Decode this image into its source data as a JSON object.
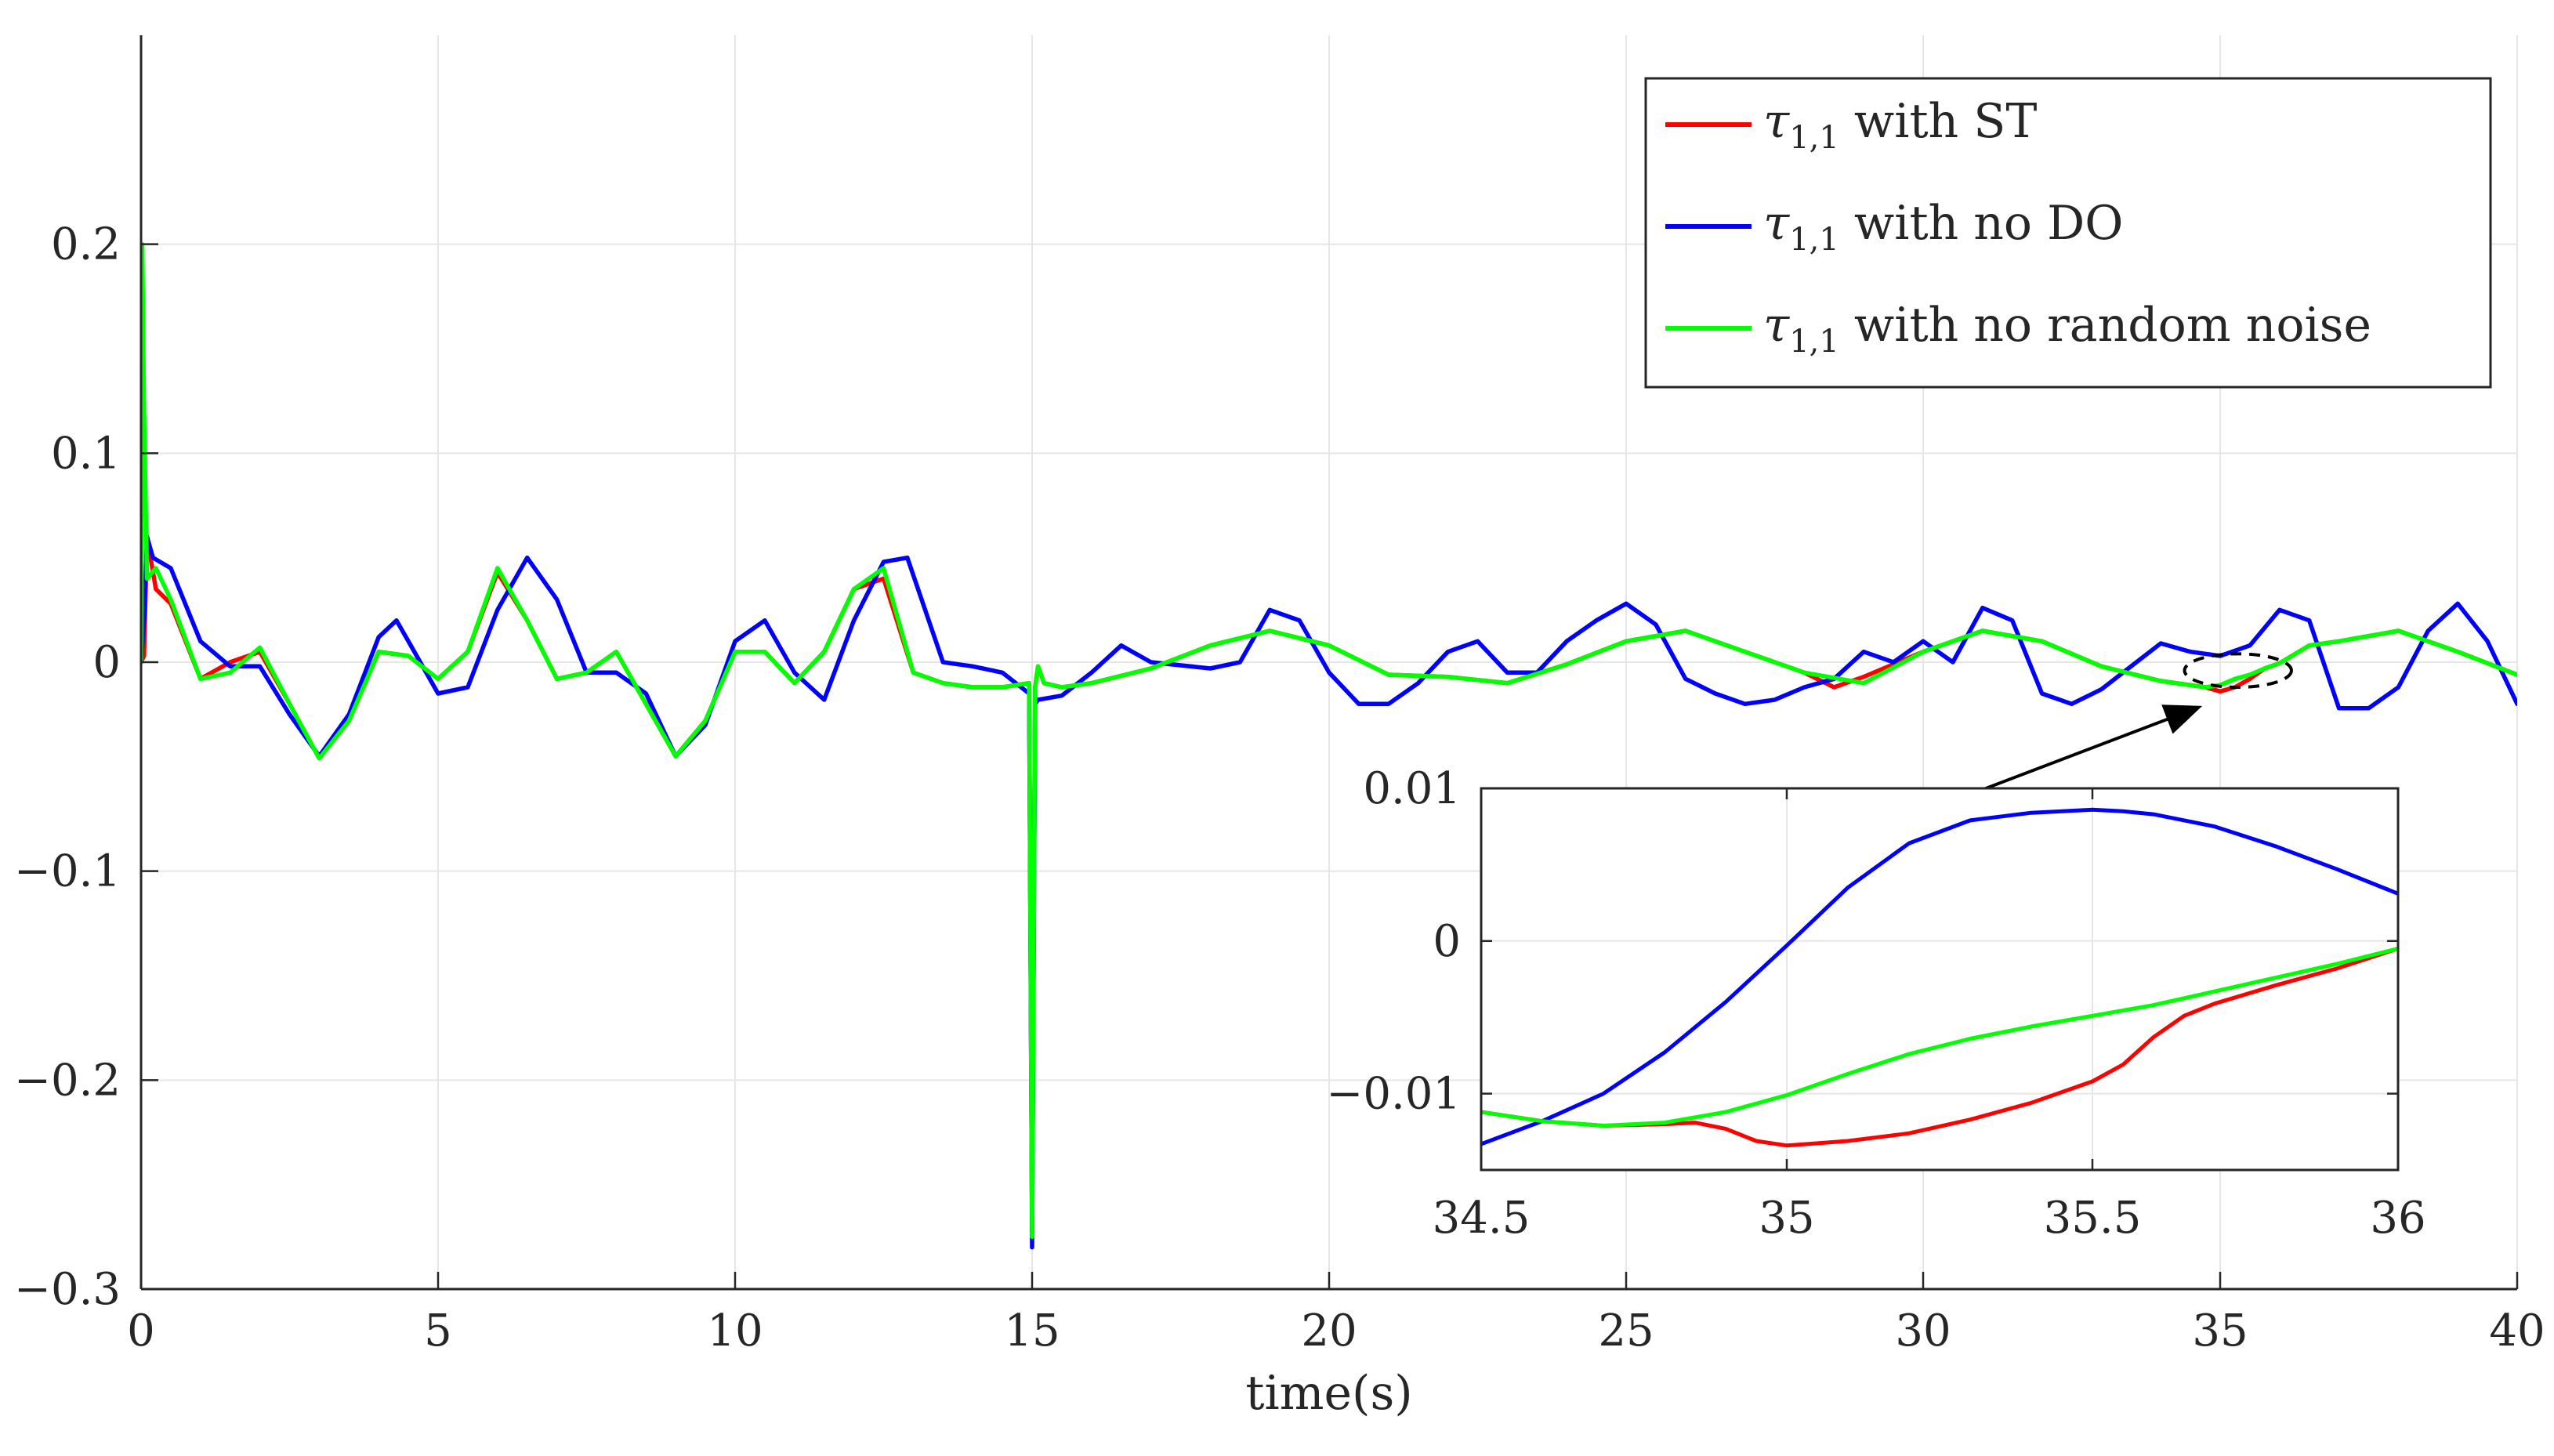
{
  "chart_data": [
    {
      "type": "line",
      "xlabel": "time(s)",
      "ylabel": "",
      "xlim": [
        0,
        40
      ],
      "ylim": [
        -0.3,
        0.3
      ],
      "xticks": [
        0,
        5,
        10,
        15,
        20,
        25,
        30,
        35,
        40
      ],
      "xtick_labels": [
        "0",
        "5",
        "10",
        "15",
        "20",
        "25",
        "30",
        "35",
        "40"
      ],
      "yticks": [
        -0.3,
        -0.2,
        -0.1,
        0,
        0.1,
        0.2
      ],
      "ytick_labels": [
        "−0.3",
        "−0.2",
        "−0.1",
        "0",
        "0.1",
        "0.2"
      ],
      "grid": true,
      "legend_position": "top-right",
      "legend": [
        {
          "symbol": "τ",
          "subscript": "1,1",
          "text": " with ST"
        },
        {
          "symbol": "τ",
          "subscript": "1,1",
          "text": " with no DO"
        },
        {
          "symbol": "τ",
          "subscript": "1,1",
          "text": " with no random noise"
        }
      ],
      "series": [
        {
          "color": "#ff0000",
          "x": [
            0,
            0.05,
            0.1,
            0.25,
            0.5,
            1,
            1.5,
            2,
            2.5,
            3,
            3.5,
            4,
            4.5,
            5,
            5.5,
            6,
            6.5,
            7,
            7.5,
            8,
            8.5,
            9,
            9.5,
            10,
            10.5,
            11,
            11.5,
            12,
            12.5,
            13,
            13.5,
            14,
            14.5,
            14.95,
            15.0,
            15.05,
            15.1,
            15.2,
            15.5,
            16,
            17,
            18,
            19,
            20,
            21,
            22,
            23,
            24,
            25,
            26,
            27,
            28,
            28.5,
            29,
            30,
            31,
            32,
            33,
            34,
            34.5,
            34.75,
            35,
            35.25,
            35.5,
            35.75,
            36,
            36.5,
            37,
            38,
            39,
            40
          ],
          "y": [
            0.0,
            0.003,
            0.06,
            0.035,
            0.028,
            -0.008,
            0.0,
            0.005,
            -0.02,
            -0.046,
            -0.028,
            0.005,
            0.003,
            -0.008,
            0.005,
            0.043,
            0.02,
            -0.008,
            -0.005,
            0.005,
            -0.02,
            -0.045,
            -0.028,
            0.005,
            0.005,
            -0.01,
            0.005,
            0.035,
            0.04,
            -0.005,
            -0.01,
            -0.012,
            -0.012,
            -0.01,
            -0.275,
            -0.012,
            -0.002,
            -0.01,
            -0.012,
            -0.01,
            -0.003,
            0.008,
            0.015,
            0.008,
            -0.006,
            -0.007,
            -0.01,
            -0.001,
            0.01,
            0.015,
            0.005,
            -0.005,
            -0.012,
            -0.007,
            0.005,
            0.015,
            0.01,
            -0.002,
            -0.009,
            -0.011,
            -0.012,
            -0.014,
            -0.012,
            -0.008,
            -0.003,
            -0.0005,
            0.008,
            0.01,
            0.015,
            0.005,
            -0.006
          ]
        },
        {
          "color": "#0000ff",
          "x": [
            0,
            0.05,
            0.1,
            0.2,
            0.5,
            1,
            1.5,
            2,
            2.5,
            3,
            3.5,
            4,
            4.3,
            4.5,
            5,
            5.5,
            6,
            6.5,
            7,
            7.5,
            8,
            8.5,
            9,
            9.5,
            10,
            10.5,
            11,
            11.5,
            12,
            12.5,
            12.9,
            13.5,
            14,
            14.5,
            14.95,
            15.0,
            15.05,
            15.1,
            15.5,
            16,
            16.5,
            17,
            18,
            18.5,
            19,
            19.5,
            20,
            20.5,
            21,
            21.5,
            22,
            22.5,
            23,
            23.5,
            24,
            24.5,
            25,
            25.5,
            26,
            26.5,
            27,
            27.5,
            28,
            28.5,
            29,
            29.5,
            30,
            30.5,
            31,
            31.5,
            32,
            32.5,
            33,
            33.5,
            34,
            34.5,
            35,
            35.5,
            36,
            36.5,
            37,
            37.5,
            38,
            38.5,
            39,
            39.5,
            40
          ],
          "y": [
            0.0,
            0.02,
            0.06,
            0.05,
            0.045,
            0.01,
            -0.002,
            -0.002,
            -0.025,
            -0.045,
            -0.025,
            0.012,
            0.02,
            0.01,
            -0.015,
            -0.012,
            0.025,
            0.05,
            0.03,
            -0.005,
            -0.005,
            -0.015,
            -0.045,
            -0.03,
            0.01,
            0.02,
            -0.005,
            -0.018,
            0.02,
            0.048,
            0.05,
            0.0,
            -0.002,
            -0.005,
            -0.015,
            -0.28,
            -0.02,
            -0.018,
            -0.016,
            -0.005,
            0.008,
            0.0,
            -0.003,
            0.0,
            0.025,
            0.02,
            -0.005,
            -0.02,
            -0.02,
            -0.01,
            0.005,
            0.01,
            -0.005,
            -0.005,
            0.01,
            0.02,
            0.028,
            0.018,
            -0.008,
            -0.015,
            -0.02,
            -0.018,
            -0.012,
            -0.008,
            0.005,
            0.0,
            0.01,
            0.0,
            0.026,
            0.02,
            -0.015,
            -0.02,
            -0.013,
            -0.002,
            0.009,
            0.005,
            0.003,
            0.008,
            0.025,
            0.02,
            -0.022,
            -0.022,
            -0.012,
            0.015,
            0.028,
            0.01,
            -0.02
          ]
        },
        {
          "color": "#00ff00",
          "x": [
            0,
            0.02,
            0.05,
            0.1,
            0.25,
            0.5,
            1,
            1.5,
            2,
            2.5,
            3,
            3.5,
            4,
            4.5,
            5,
            5.5,
            6,
            6.5,
            7,
            7.5,
            8,
            8.5,
            9,
            9.5,
            10,
            10.5,
            11,
            11.5,
            12,
            12.5,
            13,
            13.5,
            14,
            14.5,
            14.95,
            15.0,
            15.05,
            15.1,
            15.2,
            15.5,
            16,
            17,
            18,
            19,
            20,
            21,
            22,
            23,
            24,
            25,
            26,
            27,
            28,
            29,
            30,
            31,
            32,
            33,
            34,
            34.5,
            34.75,
            35,
            35.25,
            35.5,
            35.75,
            36,
            36.5,
            37,
            38,
            39,
            40
          ],
          "y": [
            0.0,
            0.2,
            0.12,
            0.04,
            0.045,
            0.03,
            -0.008,
            -0.005,
            0.007,
            -0.02,
            -0.046,
            -0.028,
            0.005,
            0.003,
            -0.008,
            0.005,
            0.045,
            0.02,
            -0.008,
            -0.005,
            0.005,
            -0.02,
            -0.045,
            -0.028,
            0.005,
            0.005,
            -0.01,
            0.005,
            0.035,
            0.045,
            -0.005,
            -0.01,
            -0.012,
            -0.012,
            -0.01,
            -0.275,
            -0.012,
            -0.002,
            -0.01,
            -0.012,
            -0.01,
            -0.003,
            0.008,
            0.015,
            0.008,
            -0.006,
            -0.007,
            -0.01,
            -0.001,
            0.01,
            0.015,
            0.005,
            -0.005,
            -0.01,
            0.005,
            0.015,
            0.01,
            -0.002,
            -0.009,
            -0.011,
            -0.012,
            -0.011,
            -0.008,
            -0.006,
            -0.003,
            -0.0005,
            0.008,
            0.01,
            0.015,
            0.005,
            -0.006
          ]
        }
      ],
      "annotations": [
        {
          "type": "ellipse",
          "cx": 35.3,
          "cy": -0.004,
          "rx": 0.9,
          "ry": 0.008,
          "style": "dashed"
        },
        {
          "type": "arrow",
          "from": [
            31,
            -0.061
          ],
          "to": [
            34.6,
            -0.022
          ]
        }
      ]
    },
    {
      "type": "line",
      "role": "inset",
      "xlim": [
        34.5,
        36
      ],
      "ylim": [
        -0.015,
        0.01
      ],
      "xticks": [
        34.5,
        35,
        35.5,
        36
      ],
      "xtick_labels": [
        "34.5",
        "35",
        "35.5",
        "36"
      ],
      "yticks": [
        -0.01,
        0,
        0.01
      ],
      "ytick_labels": [
        "−0.01",
        "0",
        "0.01"
      ],
      "grid": true,
      "series": [
        {
          "color": "#ff0000",
          "x": [
            34.5,
            34.6,
            34.7,
            34.8,
            34.85,
            34.9,
            34.95,
            35.0,
            35.1,
            35.2,
            35.3,
            35.4,
            35.5,
            35.55,
            35.6,
            35.65,
            35.7,
            35.8,
            35.9,
            36.0
          ],
          "y": [
            -0.0112,
            -0.0118,
            -0.0121,
            -0.012,
            -0.0119,
            -0.0123,
            -0.0131,
            -0.0134,
            -0.0131,
            -0.0126,
            -0.0117,
            -0.0106,
            -0.0092,
            -0.0081,
            -0.0063,
            -0.0049,
            -0.0041,
            -0.0029,
            -0.0018,
            -0.0005
          ]
        },
        {
          "color": "#0000ff",
          "x": [
            34.5,
            34.6,
            34.7,
            34.8,
            34.9,
            35.0,
            35.1,
            35.2,
            35.3,
            35.4,
            35.5,
            35.55,
            35.6,
            35.7,
            35.8,
            35.9,
            36.0
          ],
          "y": [
            -0.0133,
            -0.0118,
            -0.01,
            -0.0073,
            -0.004,
            -0.0003,
            0.0035,
            0.0064,
            0.0079,
            0.0084,
            0.0086,
            0.0085,
            0.0083,
            0.0075,
            0.0062,
            0.0047,
            0.0031
          ]
        },
        {
          "color": "#00ff00",
          "x": [
            34.5,
            34.6,
            34.7,
            34.8,
            34.9,
            35.0,
            35.1,
            35.2,
            35.3,
            35.4,
            35.5,
            35.6,
            35.7,
            35.8,
            35.9,
            36.0
          ],
          "y": [
            -0.0112,
            -0.0118,
            -0.0121,
            -0.0119,
            -0.0112,
            -0.0101,
            -0.0087,
            -0.0074,
            -0.0064,
            -0.0056,
            -0.0049,
            -0.0042,
            -0.0033,
            -0.0024,
            -0.0015,
            -0.0005
          ]
        }
      ]
    }
  ]
}
